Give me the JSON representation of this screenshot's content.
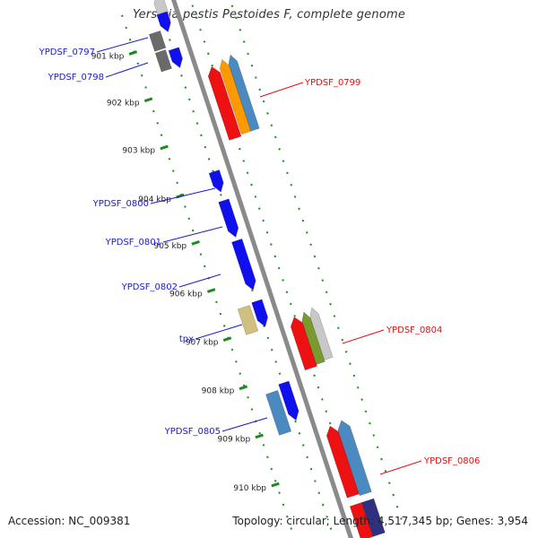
{
  "title": "Yersinia pestis Pestoides F, complete genome",
  "accession": "Accession: NC_009381",
  "topology": "Topology: circular; Length: 4,517,345 bp; Genes: 3,954",
  "colors": {
    "backbone": "#8a8a8a",
    "tick": "#1e8a1e",
    "forward_label": "#1a1acc",
    "reverse_label": "#dd1111",
    "blue": "#1010ee",
    "grey": "#6a6a6a",
    "red": "#ee1111",
    "orange": "#ff9900",
    "steel": "#4a8ac0",
    "olive": "#d0c080",
    "green": "#7a9a30",
    "silver": "#c8c8c8"
  },
  "kbp_labels": [
    "901 kbp",
    "902 kbp",
    "903 kbp",
    "904 kbp",
    "905 kbp",
    "906 kbp",
    "907 kbp",
    "908 kbp",
    "909 kbp",
    "910 kbp"
  ],
  "gene_labels": [
    {
      "text": "YPDSF_0797",
      "strand": "forward"
    },
    {
      "text": "YPDSF_0798",
      "strand": "forward"
    },
    {
      "text": "YPDSF_0799",
      "strand": "reverse"
    },
    {
      "text": "YPDSF_0800",
      "strand": "forward"
    },
    {
      "text": "YPDSF_0801",
      "strand": "forward"
    },
    {
      "text": "YPDSF_0802",
      "strand": "forward"
    },
    {
      "text": "tpx",
      "strand": "forward"
    },
    {
      "text": "YPDSF_0804",
      "strand": "reverse"
    },
    {
      "text": "YPDSF_0805",
      "strand": "forward"
    },
    {
      "text": "YPDSF_0806",
      "strand": "reverse"
    }
  ]
}
